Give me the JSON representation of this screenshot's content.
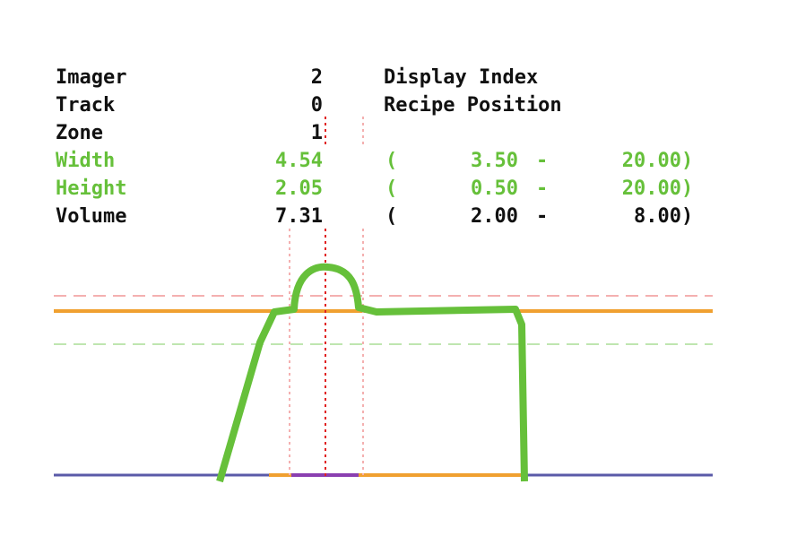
{
  "rows": [
    {
      "label": "Imager",
      "value": "2",
      "note": "Display Index",
      "color": "#111111"
    },
    {
      "label": "Track",
      "value": "0",
      "note": "Recipe Position",
      "color": "#111111"
    },
    {
      "label": "Zone",
      "value": "1",
      "color": "#111111"
    },
    {
      "label": "Width",
      "value": "4.54",
      "range": {
        "open": "(",
        "min": "3.50",
        "sep": "-",
        "max": "20.00",
        "close": ")"
      },
      "color": "#66c03a"
    },
    {
      "label": "Height",
      "value": "2.05",
      "range": {
        "open": "(",
        "min": "0.50",
        "sep": "-",
        "max": "20.00",
        "close": ")"
      },
      "color": "#66c03a"
    },
    {
      "label": "Volume",
      "value": "7.31",
      "range": {
        "open": "(",
        "min": "2.00",
        "sep": "-",
        "max": "8.00",
        "close": ")"
      },
      "color": "#111111"
    }
  ]
}
